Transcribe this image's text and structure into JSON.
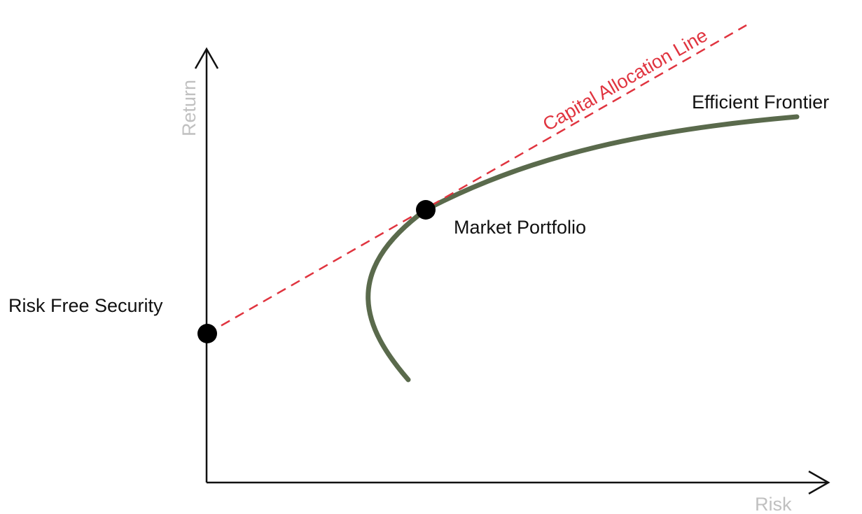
{
  "axes": {
    "y_label": "Return",
    "x_label": "Risk"
  },
  "labels": {
    "capital_allocation_line": "Capital Allocation Line",
    "efficient_frontier": "Efficient Frontier",
    "market_portfolio": "Market Portfolio",
    "risk_free_security": "Risk Free Security"
  },
  "colors": {
    "axis": "#111111",
    "axis_label": "#c0c0c0",
    "capital_allocation_line": "#e0343f",
    "efficient_frontier": "#5a6a4c",
    "point": "#000000",
    "text": "#111111"
  }
}
